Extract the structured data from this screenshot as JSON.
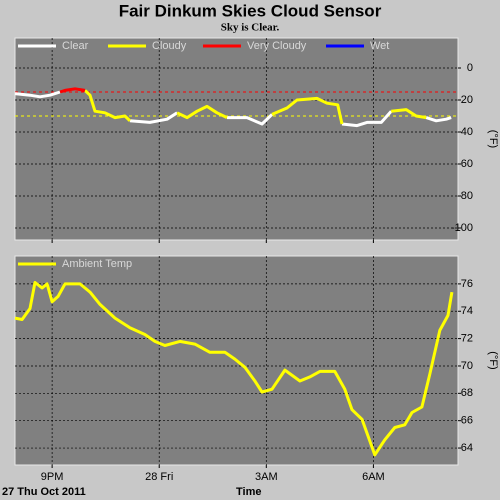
{
  "chart_data": [
    {
      "type": "line",
      "title": "Fair Dinkum Skies Cloud Sensor",
      "subtitle": "Sky is Clear.",
      "ylabel": "(°F)",
      "x": [
        -4.04,
        -3.62,
        -3.34,
        -3.06,
        -2.78,
        -2.64,
        -2.36,
        -2.08,
        -1.94,
        -1.8,
        -1.52,
        -1.24,
        -0.96,
        -0.82,
        -0.26,
        0.22,
        0.5,
        0.78,
        1.06,
        1.34,
        1.62,
        1.9,
        2.46,
        2.88,
        3.16,
        3.58,
        3.86,
        4.42,
        4.7,
        5.0,
        5.12,
        5.54,
        5.82,
        6.22,
        6.5,
        6.92,
        7.2,
        7.48,
        7.76,
        8.04,
        8.18
      ],
      "series": [
        {
          "name": "Clear",
          "color": "#ffffff",
          "values": [
            -16,
            -17,
            -18,
            -17,
            -15,
            null,
            null,
            null,
            null,
            null,
            null,
            null,
            null,
            -33,
            -34,
            -32,
            -28,
            null,
            null,
            null,
            null,
            -31,
            -31,
            -35,
            -29,
            null,
            null,
            null,
            null,
            null,
            -35,
            -36,
            -34,
            -34,
            -27,
            null,
            null,
            -31,
            -33,
            -32,
            -31
          ]
        },
        {
          "name": "Cloudy",
          "color": "#ffff00",
          "values": [
            null,
            null,
            null,
            null,
            null,
            null,
            null,
            -14,
            -17,
            -27,
            -28,
            -31,
            -30,
            -33,
            null,
            null,
            -28,
            -31,
            -27,
            -24,
            -28,
            -31,
            null,
            null,
            -29,
            -25,
            -20,
            -19,
            -22,
            -23,
            -35,
            null,
            null,
            null,
            -27,
            -26,
            -30,
            -31,
            null,
            null,
            null
          ]
        },
        {
          "name": "Very Cloudy",
          "color": "#ff0000",
          "values": [
            null,
            null,
            null,
            null,
            -15,
            -14,
            -13,
            -14,
            null,
            null,
            null,
            null,
            null,
            null,
            null,
            null,
            null,
            null,
            null,
            null,
            null,
            null,
            null,
            null,
            null,
            null,
            null,
            null,
            null,
            null,
            null,
            null,
            null,
            null,
            null,
            null,
            null,
            null,
            null,
            null,
            null
          ]
        },
        {
          "name": "Wet",
          "color": "#0000ff",
          "values": [
            null,
            null,
            null,
            null,
            null,
            null,
            null,
            null,
            null,
            null,
            null,
            null,
            null,
            null,
            null,
            null,
            null,
            null,
            null,
            null,
            null,
            null,
            null,
            null,
            null,
            null,
            null,
            null,
            null,
            null,
            null,
            null,
            null,
            null,
            null,
            null,
            null,
            null,
            null,
            null,
            null
          ]
        }
      ],
      "thresholds": [
        {
          "value": -15,
          "color": "#ff0000"
        },
        {
          "value": -30,
          "color": "#ffff00"
        }
      ],
      "xlim": [
        -4.04,
        8.37
      ],
      "xticks": [
        {
          "value": -3,
          "label": "9PM"
        },
        {
          "value": 0,
          "label": "28 Fri"
        },
        {
          "value": 3,
          "label": "3AM"
        },
        {
          "value": 6,
          "label": "6AM"
        }
      ],
      "ylim": [
        -107.5,
        18.75
      ],
      "yticks": [
        0,
        -20,
        -40,
        -60,
        -80,
        -100
      ],
      "grid": true
    },
    {
      "type": "line",
      "ylabel": "(°F)",
      "xlabel": "Time",
      "annotation": "27 Thu Oct 2011",
      "x": [
        -4.04,
        -3.84,
        -3.62,
        -3.48,
        -3.28,
        -3.14,
        -3.0,
        -2.83,
        -2.64,
        -2.22,
        -1.94,
        -1.66,
        -1.24,
        -0.82,
        -0.4,
        -0.12,
        0.16,
        0.58,
        1.0,
        1.42,
        1.84,
        2.12,
        2.4,
        2.68,
        2.88,
        3.16,
        3.52,
        3.94,
        4.22,
        4.5,
        4.92,
        5.2,
        5.4,
        5.68,
        6.04,
        6.32,
        6.6,
        6.88,
        7.08,
        7.36,
        7.58,
        7.86,
        8.09,
        8.2
      ],
      "series": [
        {
          "name": "Ambient Temp",
          "color": "#ffff00",
          "values": [
            73.5,
            73.4,
            74.2,
            76.1,
            75.7,
            76,
            74.7,
            75.1,
            76,
            76,
            75.4,
            74.5,
            73.5,
            72.8,
            72.3,
            71.8,
            71.5,
            71.8,
            71.6,
            71,
            71,
            70.5,
            69.9,
            68.9,
            68.1,
            68.3,
            69.7,
            68.9,
            69.2,
            69.6,
            69.6,
            68.3,
            66.8,
            66.1,
            63.5,
            64.6,
            65.5,
            65.7,
            66.6,
            67,
            69.4,
            72.6,
            73.7,
            75.4
          ]
        }
      ],
      "xlim": [
        -4.04,
        8.37
      ],
      "xticks": [
        {
          "value": -3,
          "label": "9PM"
        },
        {
          "value": 0,
          "label": "28 Fri"
        },
        {
          "value": 3,
          "label": "3AM"
        },
        {
          "value": 6,
          "label": "6AM"
        }
      ],
      "ylim": [
        62.76,
        78.04
      ],
      "yticks": [
        64,
        66,
        68,
        70,
        72,
        74,
        76
      ],
      "grid": true
    }
  ]
}
